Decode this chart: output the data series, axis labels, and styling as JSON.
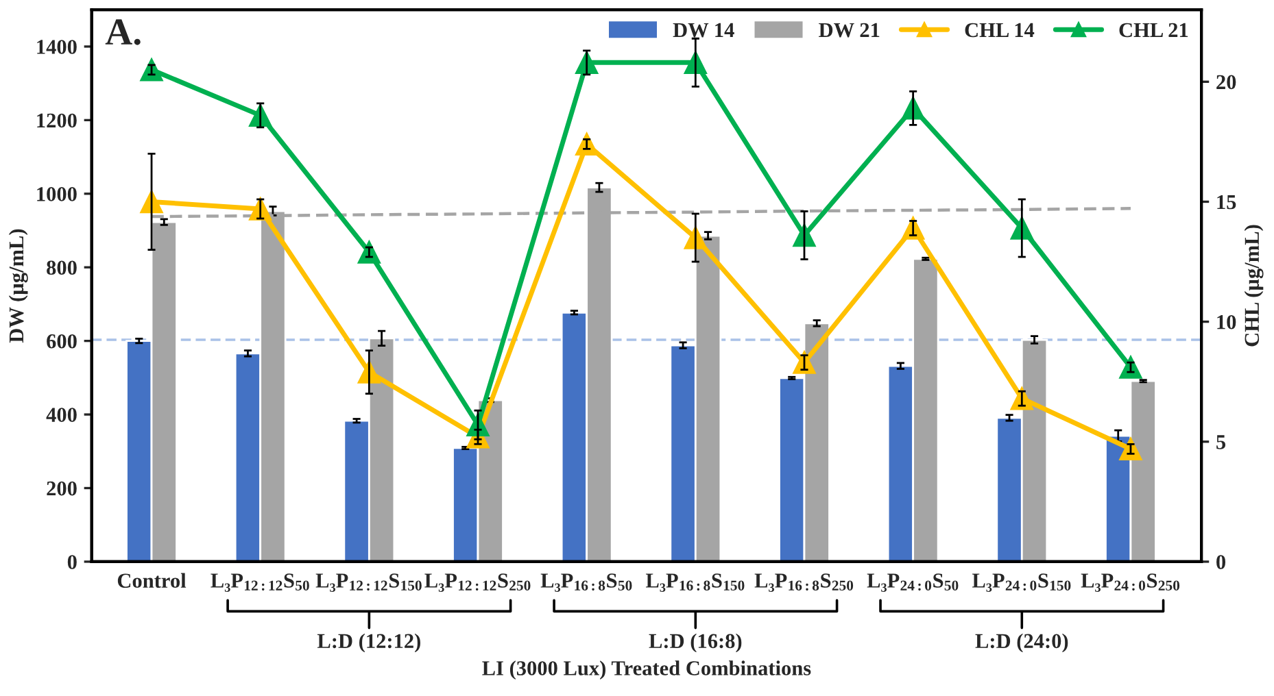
{
  "chart_data": {
    "type": "bar",
    "title": "A.",
    "xlabel": "LI (3000 Lux) Treated Combinations",
    "ylabel": "DW (µg/mL)",
    "y2label": "CHL (µg/mL)",
    "categories": [
      "Control",
      "L₃P$_{12:12}$S$_{50}$",
      "L₃P$_{12:12}$S$_{150}$",
      "L₃P$_{12:12}$S$_{250}$",
      "L₃P$_{16:8}$S$_{50}$",
      "L₃P$_{16:8}$S$_{150}$",
      "L₃P$_{16:8}$S$_{250}$",
      "L₃P$_{24:0}$S$_{50}$",
      "L₃P$_{24:0}$S$_{150}$",
      "L₃P$_{24:0}$S$_{250}$"
    ],
    "series": [
      {
        "name": "DW 14",
        "color": "#4472c4",
        "values": [
          600,
          566,
          383,
          309,
          677,
          588,
          499,
          532,
          391,
          342
        ],
        "errors": [
          6,
          8,
          5,
          3,
          5,
          8,
          3,
          8,
          8,
          15
        ]
      },
      {
        "name": "DW 21",
        "color": "#a5a5a5",
        "values": [
          923,
          953,
          607,
          439,
          1017,
          886,
          648,
          823,
          603,
          491
        ],
        "errors": [
          8,
          12,
          20,
          5,
          12,
          10,
          8,
          3,
          10,
          3
        ]
      },
      {
        "name": "CHL 14",
        "type": "line",
        "axis": "y2",
        "color": "#ffc000",
        "marker": "triangle",
        "values": [
          15.0,
          14.7,
          7.9,
          5.2,
          17.4,
          13.5,
          8.3,
          13.9,
          6.8,
          4.7
        ],
        "errors": [
          2.0,
          0.4,
          0.9,
          0.3,
          0.2,
          1.0,
          0.3,
          0.3,
          0.3,
          0.2
        ]
      },
      {
        "name": "CHL 21",
        "type": "line",
        "axis": "y2",
        "color": "#00b050",
        "marker": "triangle",
        "values": [
          20.5,
          18.6,
          12.9,
          5.7,
          20.8,
          20.8,
          13.6,
          18.9,
          13.9,
          8.1
        ],
        "errors": [
          0.2,
          0.5,
          0.2,
          0.6,
          0.5,
          1.0,
          1.0,
          0.7,
          1.2,
          0.2
        ]
      },
      {
        "type": "line",
        "color": "#a5a5a5",
        "line_style": "dashed",
        "marker": "none",
        "values": [
          938,
          940,
          943,
          945,
          948,
          950,
          953,
          955,
          957,
          960
        ]
      }
    ],
    "ref_lines": [
      {
        "axis": "y",
        "value": 603,
        "color": "#a9c1e8",
        "line_style": "dashed"
      }
    ],
    "annotations": [
      "L:D (12:12)",
      "L:D (16:8)",
      "L:D (24:0)"
    ],
    "ylim": [
      0,
      1500
    ],
    "yticks": [
      0,
      200,
      400,
      600,
      800,
      1000,
      1200,
      1400
    ],
    "y2lim": [
      0,
      23
    ],
    "y2ticks": [
      0,
      5,
      10,
      15,
      20
    ],
    "legend": "top right",
    "grid": false
  }
}
